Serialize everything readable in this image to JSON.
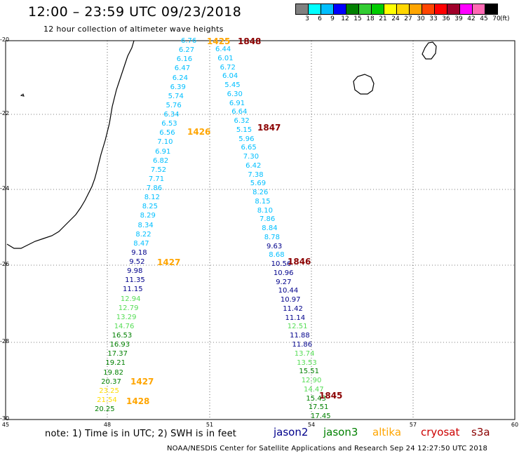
{
  "header": {
    "title": "12:00 – 23:59 UTC 09/23/2018",
    "subtitle": "12 hour collection of altimeter wave heights"
  },
  "scale": {
    "labels": [
      "3",
      "6",
      "9",
      "12",
      "15",
      "18",
      "21",
      "24",
      "27",
      "30",
      "33",
      "36",
      "39",
      "42",
      "45",
      "70"
    ],
    "unit": "(ft)",
    "colors": [
      "#808080",
      "#00ffff",
      "#00bfff",
      "#0000ff",
      "#008000",
      "#32cd32",
      "#00cc00",
      "#ffff00",
      "#ffd700",
      "#ffa500",
      "#ff4500",
      "#ff0000",
      "#a0002a",
      "#ff00ff",
      "#ff69b4",
      "#000000"
    ]
  },
  "axes": {
    "lat_labels": [
      "-20",
      "-22",
      "-24",
      "-26",
      "-28",
      "-30"
    ],
    "lon_labels": [
      "45",
      "48",
      "51",
      "54",
      "57",
      "60"
    ]
  },
  "colors": {
    "jason2": "#00008b",
    "jason3": "#008000",
    "altika": "#ffa500",
    "cryosat": "#cc0000",
    "s3a": "#8b0000",
    "swh_cyan": "#00bfff",
    "swh_navy": "#00008b",
    "swh_green": "#55dd55",
    "swh_darkgreen": "#008000",
    "swh_yellow": "#ffdd00"
  },
  "track_west": [
    {
      "v": "6.76",
      "c": "swh_cyan"
    },
    {
      "v": "6.27",
      "c": "swh_cyan"
    },
    {
      "v": "6.16",
      "c": "swh_cyan"
    },
    {
      "v": "6.47",
      "c": "swh_cyan"
    },
    {
      "v": "6.24",
      "c": "swh_cyan"
    },
    {
      "v": "6.39",
      "c": "swh_cyan"
    },
    {
      "v": "5.74",
      "c": "swh_cyan"
    },
    {
      "v": "5.76",
      "c": "swh_cyan"
    },
    {
      "v": "6.34",
      "c": "swh_cyan"
    },
    {
      "v": "6.53",
      "c": "swh_cyan"
    },
    {
      "v": "6.56",
      "c": "swh_cyan"
    },
    {
      "v": "7.10",
      "c": "swh_cyan"
    },
    {
      "v": "6.91",
      "c": "swh_cyan"
    },
    {
      "v": "6.82",
      "c": "swh_cyan"
    },
    {
      "v": "7.52",
      "c": "swh_cyan"
    },
    {
      "v": "7.71",
      "c": "swh_cyan"
    },
    {
      "v": "7.86",
      "c": "swh_cyan"
    },
    {
      "v": "8.12",
      "c": "swh_cyan"
    },
    {
      "v": "8.25",
      "c": "swh_cyan"
    },
    {
      "v": "8.29",
      "c": "swh_cyan"
    },
    {
      "v": "8.34",
      "c": "swh_cyan"
    },
    {
      "v": "8.22",
      "c": "swh_cyan"
    },
    {
      "v": "8.47",
      "c": "swh_cyan"
    },
    {
      "v": "9.18",
      "c": "swh_navy"
    },
    {
      "v": "9.52",
      "c": "swh_navy"
    },
    {
      "v": "9.98",
      "c": "swh_navy"
    },
    {
      "v": "11.35",
      "c": "swh_navy"
    },
    {
      "v": "11.15",
      "c": "swh_navy"
    },
    {
      "v": "12.94",
      "c": "swh_green"
    },
    {
      "v": "12.79",
      "c": "swh_green"
    },
    {
      "v": "13.29",
      "c": "swh_green"
    },
    {
      "v": "14.76",
      "c": "swh_green"
    },
    {
      "v": "16.53",
      "c": "swh_darkgreen"
    },
    {
      "v": "16.93",
      "c": "swh_darkgreen"
    },
    {
      "v": "17.37",
      "c": "swh_darkgreen"
    },
    {
      "v": "19.21",
      "c": "swh_darkgreen"
    },
    {
      "v": "19.82",
      "c": "swh_darkgreen"
    },
    {
      "v": "20.37",
      "c": "swh_darkgreen"
    },
    {
      "v": "23.25",
      "c": "swh_yellow"
    },
    {
      "v": "21.54",
      "c": "swh_yellow"
    },
    {
      "v": "20.25",
      "c": "swh_darkgreen"
    }
  ],
  "track_east": [
    {
      "v": "6.44",
      "c": "swh_cyan"
    },
    {
      "v": "6.01",
      "c": "swh_cyan"
    },
    {
      "v": "6.72",
      "c": "swh_cyan"
    },
    {
      "v": "6.04",
      "c": "swh_cyan"
    },
    {
      "v": "5.45",
      "c": "swh_cyan"
    },
    {
      "v": "6.30",
      "c": "swh_cyan"
    },
    {
      "v": "6.91",
      "c": "swh_cyan"
    },
    {
      "v": "6.64",
      "c": "swh_cyan"
    },
    {
      "v": "6.32",
      "c": "swh_cyan"
    },
    {
      "v": "5.15",
      "c": "swh_cyan"
    },
    {
      "v": "5.96",
      "c": "swh_cyan"
    },
    {
      "v": "6.65",
      "c": "swh_cyan"
    },
    {
      "v": "7.30",
      "c": "swh_cyan"
    },
    {
      "v": "6.42",
      "c": "swh_cyan"
    },
    {
      "v": "7.38",
      "c": "swh_cyan"
    },
    {
      "v": "5.69",
      "c": "swh_cyan"
    },
    {
      "v": "8.26",
      "c": "swh_cyan"
    },
    {
      "v": "8.15",
      "c": "swh_cyan"
    },
    {
      "v": "8.10",
      "c": "swh_cyan"
    },
    {
      "v": "7.86",
      "c": "swh_cyan"
    },
    {
      "v": "8.84",
      "c": "swh_cyan"
    },
    {
      "v": "8.78",
      "c": "swh_cyan"
    },
    {
      "v": "9.63",
      "c": "swh_navy"
    },
    {
      "v": "8.68",
      "c": "swh_cyan"
    },
    {
      "v": "10.56",
      "c": "swh_navy"
    },
    {
      "v": "10.96",
      "c": "swh_navy"
    },
    {
      "v": "9.27",
      "c": "swh_navy"
    },
    {
      "v": "10.44",
      "c": "swh_navy"
    },
    {
      "v": "10.97",
      "c": "swh_navy"
    },
    {
      "v": "11.42",
      "c": "swh_navy"
    },
    {
      "v": "11.14",
      "c": "swh_navy"
    },
    {
      "v": "12.51",
      "c": "swh_green"
    },
    {
      "v": "11.88",
      "c": "swh_navy"
    },
    {
      "v": "11.86",
      "c": "swh_navy"
    },
    {
      "v": "13.74",
      "c": "swh_green"
    },
    {
      "v": "13.53",
      "c": "swh_green"
    },
    {
      "v": "15.51",
      "c": "swh_darkgreen"
    },
    {
      "v": "12.90",
      "c": "swh_green"
    },
    {
      "v": "14.47",
      "c": "swh_green"
    },
    {
      "v": "15.43",
      "c": "swh_darkgreen"
    },
    {
      "v": "17.51",
      "c": "swh_darkgreen"
    },
    {
      "v": "17.45",
      "c": "swh_darkgreen"
    }
  ],
  "time_labels": [
    {
      "t": "1425",
      "c": "altika"
    },
    {
      "t": "1426",
      "c": "altika"
    },
    {
      "t": "1427",
      "c": "altika"
    },
    {
      "t": "1427",
      "c": "altika"
    },
    {
      "t": "1428",
      "c": "altika"
    },
    {
      "t": "1848",
      "c": "s3a"
    },
    {
      "t": "1847",
      "c": "s3a"
    },
    {
      "t": "1846",
      "c": "s3a"
    },
    {
      "t": "1845",
      "c": "s3a"
    }
  ],
  "note": "note:  1) Time is in UTC;  2) SWH is in feet",
  "legend": [
    {
      "name": "jason2",
      "c": "jason2"
    },
    {
      "name": "jason3",
      "c": "jason3"
    },
    {
      "name": "altika",
      "c": "altika"
    },
    {
      "name": "cryosat",
      "c": "cryosat"
    },
    {
      "name": "s3a",
      "c": "s3a"
    }
  ],
  "footer": "NOAA/NESDIS Center for Satellite Applications and Research    Sep 24 12:27:50 UTC 2018"
}
